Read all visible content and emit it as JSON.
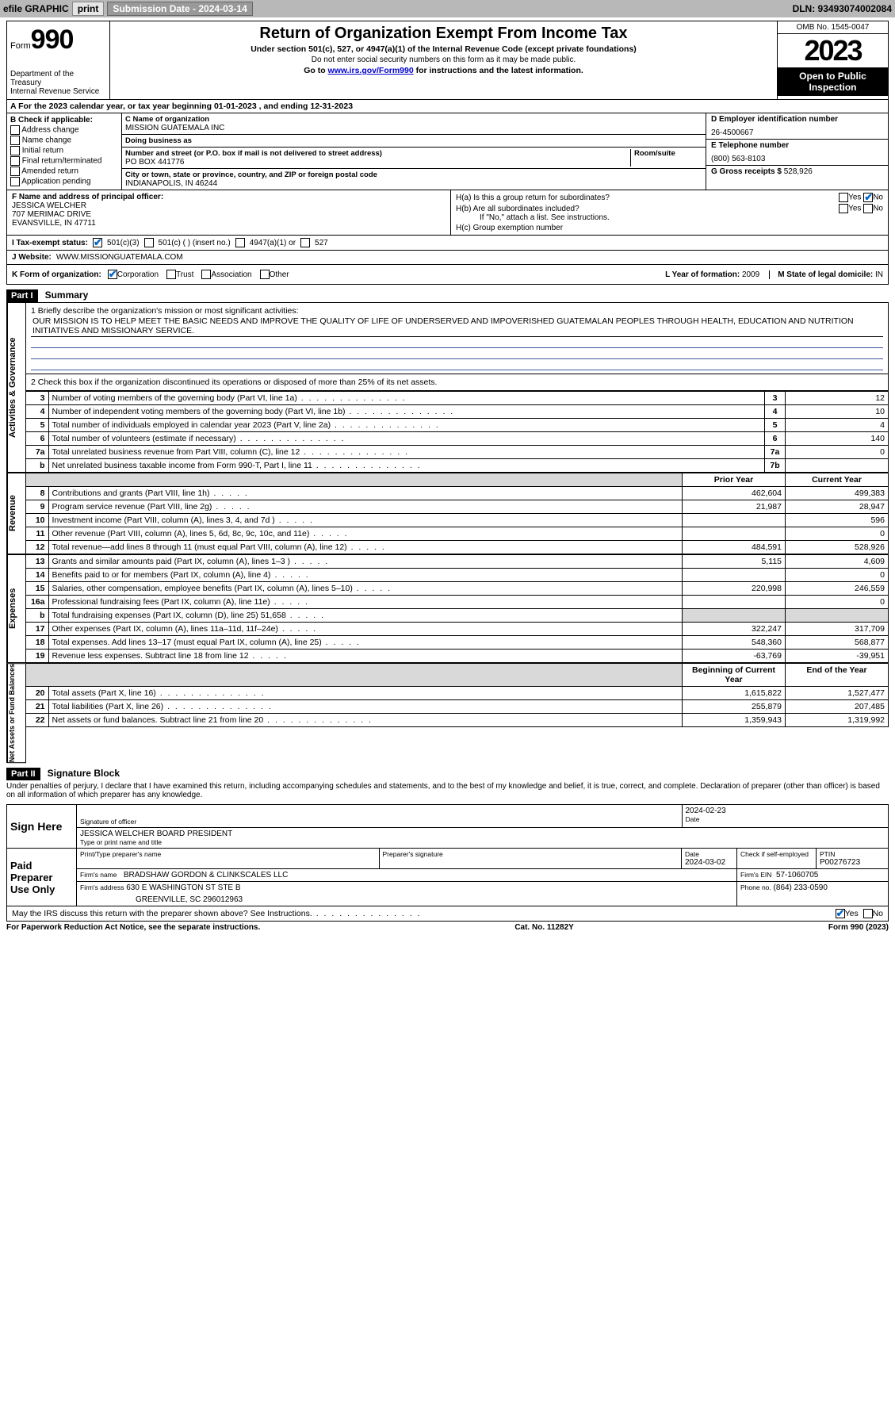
{
  "topbar": {
    "efile_label": "efile GRAPHIC",
    "print_label": "print",
    "submission_label": "Submission Date - 2024-03-14",
    "dln_label": "DLN: 93493074002084"
  },
  "header": {
    "form_word": "Form",
    "form_number": "990",
    "title": "Return of Organization Exempt From Income Tax",
    "subtitle": "Under section 501(c), 527, or 4947(a)(1) of the Internal Revenue Code (except private foundations)",
    "ssn_warning": "Do not enter social security numbers on this form as it may be made public.",
    "goto_prefix": "Go to ",
    "goto_link": "www.irs.gov/Form990",
    "goto_suffix": " for instructions and the latest information.",
    "dept": "Department of the Treasury\nInternal Revenue Service",
    "omb": "OMB No. 1545-0047",
    "year": "2023",
    "open": "Open to Public Inspection"
  },
  "line_a": {
    "prefix": "A For the 2023 calendar year, or tax year beginning ",
    "begin": "01-01-2023",
    "mid": " , and ending ",
    "end": "12-31-2023"
  },
  "col_b": {
    "header": "B Check if applicable:",
    "options": [
      "Address change",
      "Name change",
      "Initial return",
      "Final return/terminated",
      "Amended return",
      "Application pending"
    ]
  },
  "col_c": {
    "name_label": "C Name of organization",
    "name": "MISSION GUATEMALA INC",
    "dba_label": "Doing business as",
    "dba": "",
    "street_label": "Number and street (or P.O. box if mail is not delivered to street address)",
    "room_label": "Room/suite",
    "street": "PO BOX 441776",
    "city_label": "City or town, state or province, country, and ZIP or foreign postal code",
    "city": "INDIANAPOLIS, IN  46244"
  },
  "col_d": {
    "ein_label": "D Employer identification number",
    "ein": "26-4500667",
    "phone_label": "E Telephone number",
    "phone": "(800) 563-8103",
    "gross_label": "G Gross receipts $",
    "gross": "528,926"
  },
  "row_f": {
    "label": "F Name and address of principal officer:",
    "name": "JESSICA WELCHER",
    "street": "707 MERIMAC DRIVE",
    "city": "EVANSVILLE, IN  47711"
  },
  "row_h": {
    "a_label": "H(a)  Is this a group return for subordinates?",
    "b_label": "H(b)  Are all subordinates included?",
    "b_note": "If \"No,\" attach a list. See instructions.",
    "c_label": "H(c)  Group exemption number",
    "yes": "Yes",
    "no": "No"
  },
  "row_i": {
    "label": "I   Tax-exempt status:",
    "opts": [
      "501(c)(3)",
      "501(c) (  ) (insert no.)",
      "4947(a)(1) or",
      "527"
    ]
  },
  "row_j": {
    "label": "J   Website:",
    "value": "WWW.MISSIONGUATEMALA.COM"
  },
  "row_k": {
    "label": "K Form of organization:",
    "opts": [
      "Corporation",
      "Trust",
      "Association",
      "Other"
    ]
  },
  "row_l": {
    "label": "L Year of formation:",
    "value": "2009"
  },
  "row_m": {
    "label": "M State of legal domicile:",
    "value": "IN"
  },
  "part1": {
    "hdr": "Part I",
    "title": "Summary"
  },
  "mission": {
    "line1_label": "1  Briefly describe the organization's mission or most significant activities:",
    "text": "OUR MISSION IS TO HELP MEET THE BASIC NEEDS AND IMPROVE THE QUALITY OF LIFE OF UNDERSERVED AND IMPOVERISHED GUATEMALAN PEOPLES THROUGH HEALTH, EDUCATION AND NUTRITION INITIATIVES AND MISSIONARY SERVICE."
  },
  "governance": {
    "line2": "2  Check this box      if the organization discontinued its operations or disposed of more than 25% of its net assets.",
    "rows": [
      {
        "n": "3",
        "label": "Number of voting members of the governing body (Part VI, line 1a)",
        "col": "3",
        "val": "12"
      },
      {
        "n": "4",
        "label": "Number of independent voting members of the governing body (Part VI, line 1b)",
        "col": "4",
        "val": "10"
      },
      {
        "n": "5",
        "label": "Total number of individuals employed in calendar year 2023 (Part V, line 2a)",
        "col": "5",
        "val": "4"
      },
      {
        "n": "6",
        "label": "Total number of volunteers (estimate if necessary)",
        "col": "6",
        "val": "140"
      },
      {
        "n": "7a",
        "label": "Total unrelated business revenue from Part VIII, column (C), line 12",
        "col": "7a",
        "val": "0"
      },
      {
        "n": "b",
        "label": "Net unrelated business taxable income from Form 990-T, Part I, line 11",
        "col": "7b",
        "val": ""
      }
    ]
  },
  "yearcols": {
    "prior": "Prior Year",
    "current": "Current Year",
    "begin": "Beginning of Current Year",
    "end": "End of the Year"
  },
  "revenue_label": "Revenue",
  "revenue_rows": [
    {
      "n": "8",
      "label": "Contributions and grants (Part VIII, line 1h)",
      "py": "462,604",
      "cy": "499,383"
    },
    {
      "n": "9",
      "label": "Program service revenue (Part VIII, line 2g)",
      "py": "21,987",
      "cy": "28,947"
    },
    {
      "n": "10",
      "label": "Investment income (Part VIII, column (A), lines 3, 4, and 7d )",
      "py": "",
      "cy": "596"
    },
    {
      "n": "11",
      "label": "Other revenue (Part VIII, column (A), lines 5, 6d, 8c, 9c, 10c, and 11e)",
      "py": "",
      "cy": "0"
    },
    {
      "n": "12",
      "label": "Total revenue—add lines 8 through 11 (must equal Part VIII, column (A), line 12)",
      "py": "484,591",
      "cy": "528,926"
    }
  ],
  "expenses_label": "Expenses",
  "expenses_rows": [
    {
      "n": "13",
      "label": "Grants and similar amounts paid (Part IX, column (A), lines 1–3 )",
      "py": "5,115",
      "cy": "4,609"
    },
    {
      "n": "14",
      "label": "Benefits paid to or for members (Part IX, column (A), line 4)",
      "py": "",
      "cy": "0"
    },
    {
      "n": "15",
      "label": "Salaries, other compensation, employee benefits (Part IX, column (A), lines 5–10)",
      "py": "220,998",
      "cy": "246,559"
    },
    {
      "n": "16a",
      "label": "Professional fundraising fees (Part IX, column (A), line 11e)",
      "py": "",
      "cy": "0"
    },
    {
      "n": "b",
      "label": "Total fundraising expenses (Part IX, column (D), line 25) 51,658",
      "py": "GREY",
      "cy": "GREY"
    },
    {
      "n": "17",
      "label": "Other expenses (Part IX, column (A), lines 11a–11d, 11f–24e)",
      "py": "322,247",
      "cy": "317,709"
    },
    {
      "n": "18",
      "label": "Total expenses. Add lines 13–17 (must equal Part IX, column (A), line 25)",
      "py": "548,360",
      "cy": "568,877"
    },
    {
      "n": "19",
      "label": "Revenue less expenses. Subtract line 18 from line 12",
      "py": "-63,769",
      "cy": "-39,951"
    }
  ],
  "netassets_label": "Net Assets or Fund Balances",
  "netassets_rows": [
    {
      "n": "20",
      "label": "Total assets (Part X, line 16)",
      "py": "1,615,822",
      "cy": "1,527,477"
    },
    {
      "n": "21",
      "label": "Total liabilities (Part X, line 26)",
      "py": "255,879",
      "cy": "207,485"
    },
    {
      "n": "22",
      "label": "Net assets or fund balances. Subtract line 21 from line 20",
      "py": "1,359,943",
      "cy": "1,319,992"
    }
  ],
  "part2": {
    "hdr": "Part II",
    "title": "Signature Block"
  },
  "penalties": "Under penalties of perjury, I declare that I have examined this return, including accompanying schedules and statements, and to the best of my knowledge and belief, it is true, correct, and complete. Declaration of preparer (other than officer) is based on all information of which preparer has any knowledge.",
  "sign": {
    "sign_here": "Sign Here",
    "sig_officer_label": "Signature of officer",
    "officer_name": "JESSICA WELCHER  BOARD PRESIDENT",
    "type_label": "Type or print name and title",
    "date": "2024-02-23",
    "date_label": "Date"
  },
  "preparer": {
    "label": "Paid Preparer Use Only",
    "print_label": "Print/Type preparer's name",
    "sig_label": "Preparer's signature",
    "date_label": "Date",
    "date": "2024-03-02",
    "check_label": "Check        if self-employed",
    "ptin_label": "PTIN",
    "ptin": "P00276723",
    "firm_name_label": "Firm's name",
    "firm_name": "BRADSHAW GORDON & CLINKSCALES LLC",
    "firm_ein_label": "Firm's EIN",
    "firm_ein": "57-1060705",
    "firm_addr_label": "Firm's address",
    "firm_addr1": "630 E WASHINGTON ST STE B",
    "firm_addr2": "GREENVILLE, SC  296012963",
    "phone_label": "Phone no.",
    "phone": "(864) 233-0590"
  },
  "discuss": {
    "label": "May the IRS discuss this return with the preparer shown above? See Instructions.",
    "yes": "Yes",
    "no": "No"
  },
  "footer": {
    "pra": "For Paperwork Reduction Act Notice, see the separate instructions.",
    "cat": "Cat. No. 11282Y",
    "form": "Form 990 (2023)"
  }
}
